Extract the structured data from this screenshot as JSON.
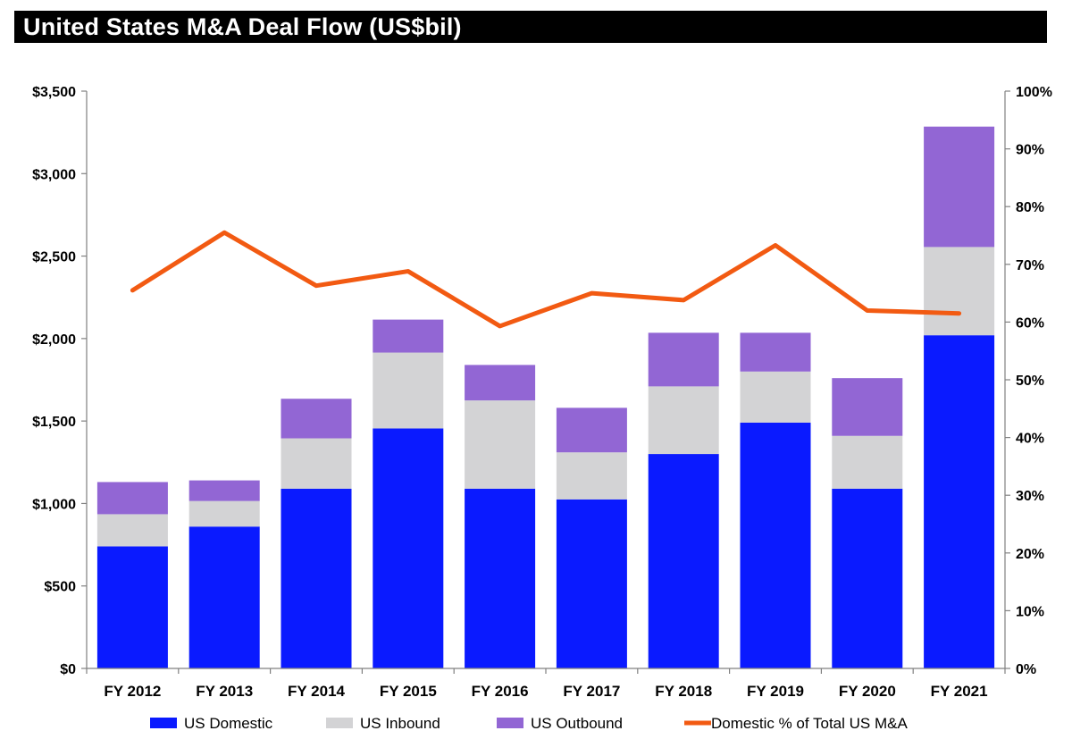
{
  "chart_data": {
    "type": "bar",
    "stacked": true,
    "title": "United States M&A Deal Flow (US$bil)",
    "categories": [
      "FY 2012",
      "FY 2013",
      "FY 2014",
      "FY 2015",
      "FY 2016",
      "FY 2017",
      "FY 2018",
      "FY 2019",
      "FY 2020",
      "FY 2021"
    ],
    "series": [
      {
        "name": "US Domestic",
        "axis": "left",
        "color": "#0a1aff",
        "values": [
          740,
          860,
          1090,
          1455,
          1090,
          1025,
          1300,
          1490,
          1090,
          2020
        ]
      },
      {
        "name": "US Inbound",
        "axis": "left",
        "color": "#d3d3d5",
        "values": [
          195,
          155,
          305,
          460,
          535,
          285,
          410,
          310,
          320,
          535
        ]
      },
      {
        "name": "US Outbound",
        "axis": "left",
        "color": "#9266d4",
        "values": [
          195,
          125,
          240,
          200,
          215,
          270,
          325,
          235,
          350,
          730
        ]
      },
      {
        "name": "Domestic % of Total US M&A",
        "type": "line",
        "axis": "right",
        "color": "#f25a12",
        "values": [
          65.5,
          75.5,
          66.3,
          68.8,
          59.3,
          65.0,
          63.8,
          73.3,
          62.0,
          61.5
        ]
      }
    ],
    "left_axis": {
      "ylim": [
        0,
        3500
      ],
      "tick_values": [
        0,
        500,
        1000,
        1500,
        2000,
        2500,
        3000,
        3500
      ],
      "tick_labels": [
        "$0",
        "$500",
        "$1,000",
        "$1,500",
        "$2,000",
        "$2,500",
        "$3,000",
        "$3,500"
      ]
    },
    "right_axis": {
      "ylim": [
        0,
        100
      ],
      "tick_values": [
        0,
        10,
        20,
        30,
        40,
        50,
        60,
        70,
        80,
        90,
        100
      ],
      "tick_labels": [
        "0%",
        "10%",
        "20%",
        "30%",
        "40%",
        "50%",
        "60%",
        "70%",
        "80%",
        "90%",
        "100%"
      ]
    },
    "legend": "bottom",
    "grid": false
  }
}
